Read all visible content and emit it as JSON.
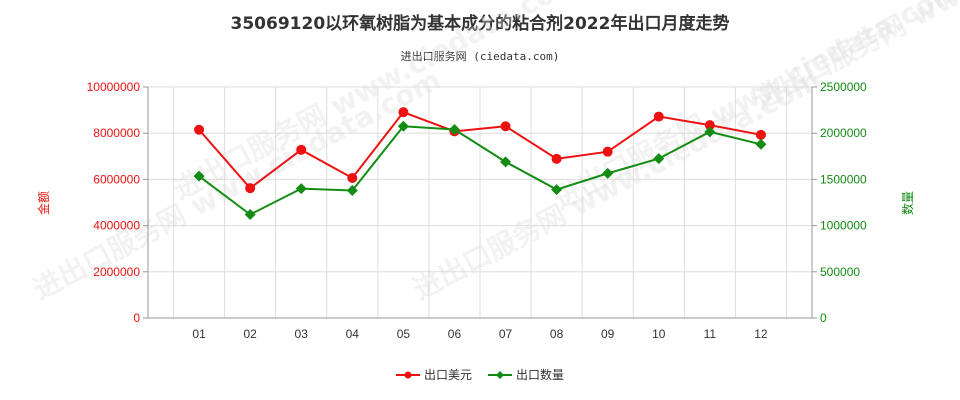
{
  "title": "35069120以环氧树脂为基本成分的粘合剂2022年出口月度走势",
  "subtitle": "进出口服务网 (ciedata.com)",
  "watermark": "进出口服务网 www.ciedata.com",
  "colors": {
    "usd": "#ee1111",
    "qty": "#138c13",
    "axis": "#999999",
    "grid": "#dddddd"
  },
  "chart_data": {
    "type": "line",
    "categories": [
      "01",
      "02",
      "03",
      "04",
      "05",
      "06",
      "07",
      "08",
      "09",
      "10",
      "11",
      "12"
    ],
    "series": [
      {
        "name": "出口美元",
        "axis": "left",
        "values": [
          8150000,
          5620000,
          7280000,
          6060000,
          8910000,
          8080000,
          8300000,
          6890000,
          7200000,
          8720000,
          8350000,
          7930000
        ]
      },
      {
        "name": "出口数量",
        "axis": "right",
        "values": [
          1535000,
          1120000,
          1400000,
          1380000,
          2075000,
          2040000,
          1690000,
          1390000,
          1565000,
          1725000,
          2015000,
          1880000
        ]
      }
    ],
    "ylabel_left": "金额",
    "ylabel_right": "数量",
    "ylim_left": [
      0,
      10000000
    ],
    "ylim_right": [
      0,
      2500000
    ],
    "yticks_left": [
      "0",
      "2000000",
      "4000000",
      "6000000",
      "8000000",
      "10000000"
    ],
    "yticks_right": [
      "0",
      "500000",
      "1000000",
      "1500000",
      "2000000",
      "2500000"
    ],
    "grid": true,
    "legend": "bottom-center"
  }
}
